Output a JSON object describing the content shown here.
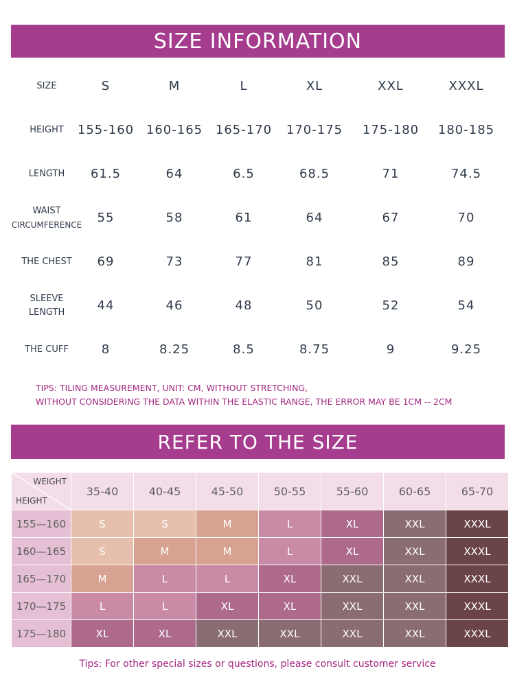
{
  "size_info": {
    "title": "SIZE INFORMATION",
    "header": {
      "label": "SIZE",
      "values": [
        "S",
        "M",
        "L",
        "XL",
        "XXL",
        "XXXL"
      ]
    },
    "rows": [
      {
        "label_lines": [
          "HEIGHT"
        ],
        "values": [
          "155-160",
          "160-165",
          "165-170",
          "170-175",
          "175-180",
          "180-185"
        ]
      },
      {
        "label_lines": [
          "LENGTH"
        ],
        "values": [
          "61.5",
          "64",
          "6.5",
          "68.5",
          "71",
          "74.5"
        ]
      },
      {
        "label_lines": [
          "WAIST",
          "CIRCUMFERENCE"
        ],
        "values": [
          "55",
          "58",
          "61",
          "64",
          "67",
          "70"
        ]
      },
      {
        "label_lines": [
          "THE CHEST"
        ],
        "values": [
          "69",
          "73",
          "77",
          "81",
          "85",
          "89"
        ]
      },
      {
        "label_lines": [
          "SLEEVE",
          "LENGTH"
        ],
        "values": [
          "44",
          "46",
          "48",
          "50",
          "52",
          "54"
        ]
      },
      {
        "label_lines": [
          "THE CUFF"
        ],
        "values": [
          "8",
          "8.25",
          "8.5",
          "8.75",
          "9",
          "9.25"
        ]
      }
    ],
    "tips_lines": [
      "TIPS: TILING MEASUREMENT, UNIT: CM, WITHOUT STRETCHING,",
      "WITHOUT CONSIDERING THE DATA WITHIN THE ELASTIC RANGE, THE ERROR MAY BE 1CM -- 2CM"
    ]
  },
  "refer": {
    "title": "REFER TO THE SIZE",
    "corner_weight": "WEIGHT",
    "corner_height": "HEIGHT",
    "weights": [
      "35-40",
      "40-45",
      "45-50",
      "50-55",
      "55-60",
      "60-65",
      "65-70"
    ],
    "heights": [
      "155—160",
      "160—165",
      "165—170",
      "170—175",
      "175—180"
    ],
    "grid": [
      [
        "S",
        "S",
        "M",
        "L",
        "XL",
        "XXL",
        "XXXL"
      ],
      [
        "S",
        "M",
        "M",
        "L",
        "XL",
        "XXL",
        "XXXL"
      ],
      [
        "M",
        "L",
        "L",
        "XL",
        "XXL",
        "XXL",
        "XXXL"
      ],
      [
        "L",
        "L",
        "XL",
        "XL",
        "XXL",
        "XXL",
        "XXXL"
      ],
      [
        "XL",
        "XL",
        "XXL",
        "XXL",
        "XXL",
        "XXL",
        "XXXL"
      ]
    ],
    "size_colors": {
      "S": "#e6c0ac",
      "M": "#d7a292",
      "L": "#c98aa6",
      "XL": "#ad6a8b",
      "XXL": "#8a6c73",
      "XXXL": "#6b4448"
    },
    "tips": "Tips: For other special sizes or questions, please consult customer service"
  },
  "colors": {
    "banner": "#a63c8e",
    "tips": "#a2267f",
    "header_cell": "#f3dde9",
    "row_header_cell": "#e5bfd4"
  }
}
